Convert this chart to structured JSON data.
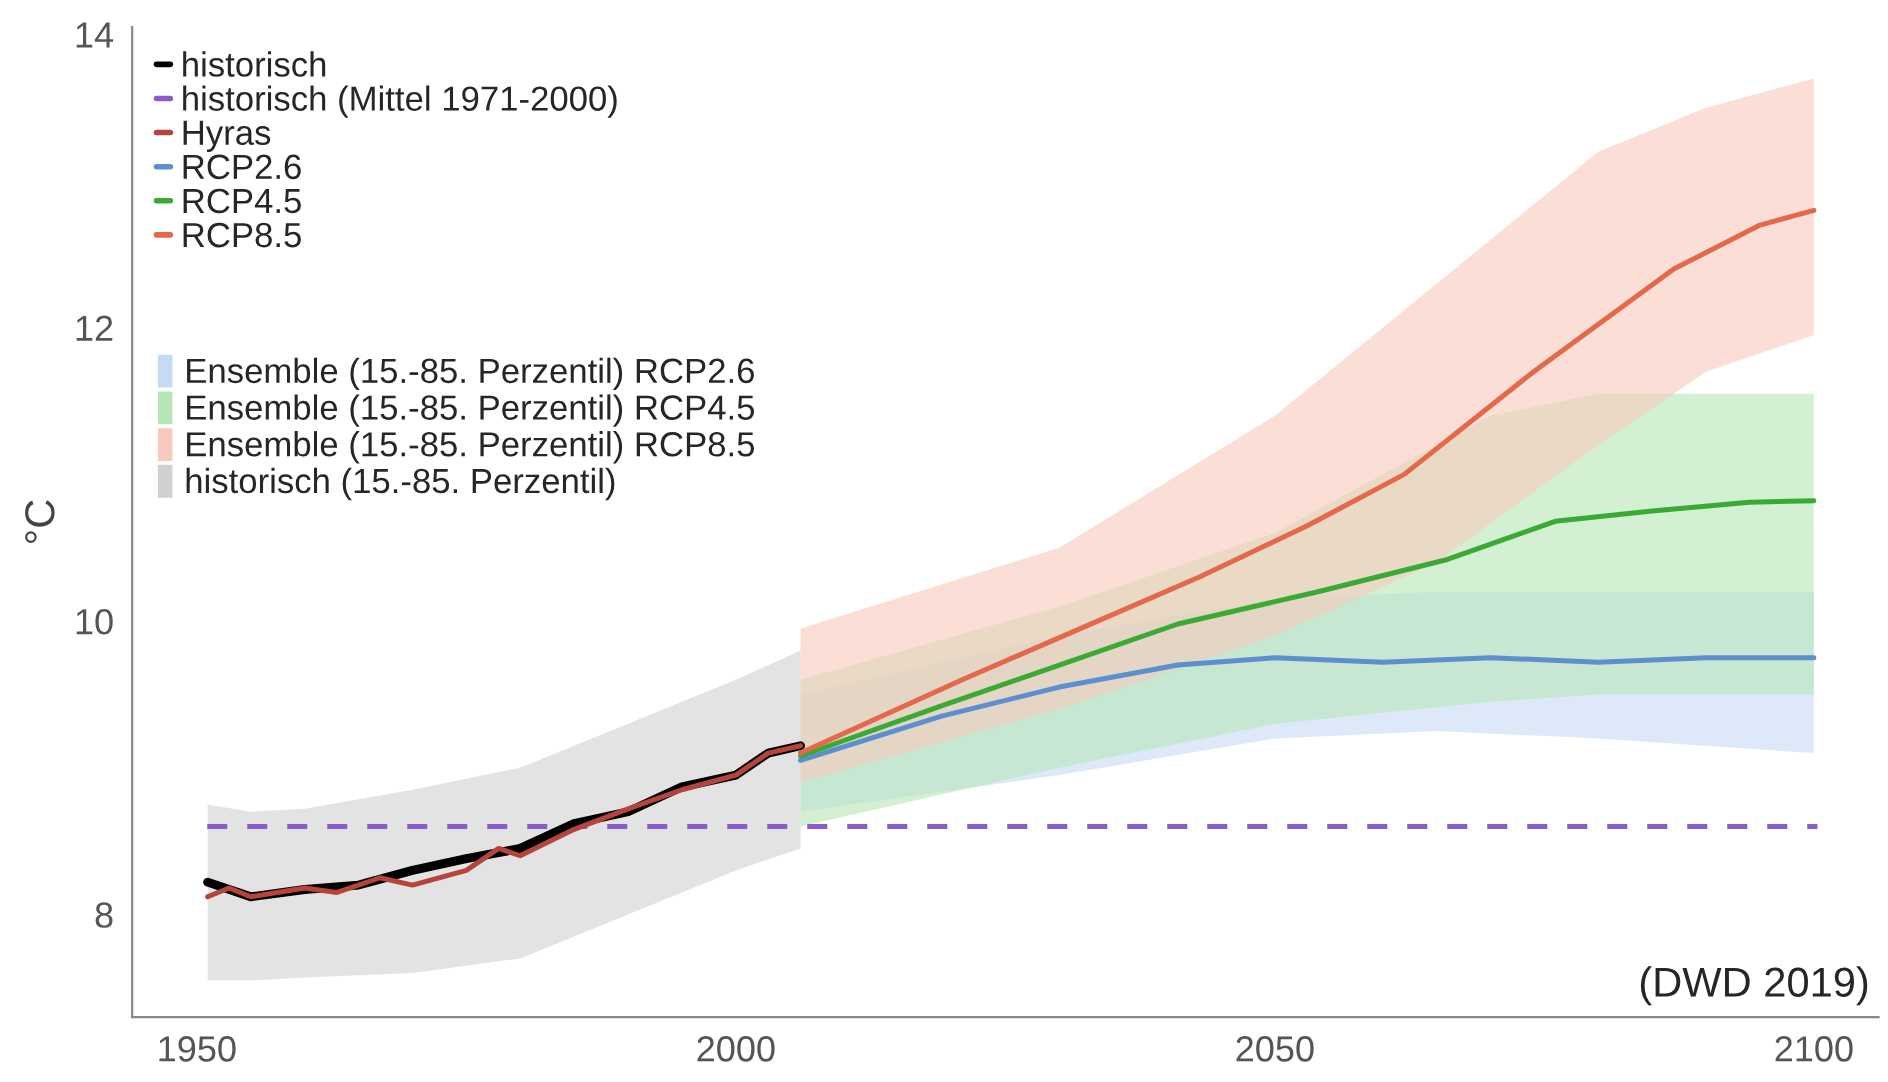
{
  "chart_data": {
    "type": "line",
    "ylabel": "°C",
    "xlim": [
      1944,
      2106
    ],
    "xticks": [
      1950,
      2000,
      2050,
      2100
    ],
    "ylim": [
      7.3,
      14.05
    ],
    "yticks": [
      8,
      10,
      12,
      14
    ],
    "grid": false,
    "legend": "top left",
    "marker": "none",
    "line_style": "solid",
    "series": [
      {
        "name": "historisch",
        "color": "#000000",
        "x": [
          1951,
          1955,
          1960,
          1965,
          1970,
          1975,
          1980,
          1985,
          1990,
          1995,
          2000,
          2003,
          2006
        ],
        "values": [
          8.22,
          8.12,
          8.17,
          8.2,
          8.3,
          8.38,
          8.45,
          8.62,
          8.7,
          8.87,
          8.95,
          9.1,
          9.15
        ]
      },
      {
        "name": "Hyras",
        "color": "#b5443b",
        "x": [
          1951,
          1953,
          1955,
          1960,
          1963,
          1967,
          1970,
          1975,
          1978,
          1980,
          1985,
          1990,
          1995,
          2000,
          2003,
          2006
        ],
        "values": [
          8.12,
          8.18,
          8.12,
          8.18,
          8.15,
          8.25,
          8.2,
          8.3,
          8.45,
          8.4,
          8.58,
          8.72,
          8.85,
          8.95,
          9.1,
          9.15
        ]
      },
      {
        "name": "RCP2.6",
        "color": "#5b8fd0",
        "x": [
          2006,
          2019,
          2030,
          2041,
          2050,
          2060,
          2070,
          2080,
          2090,
          2100
        ],
        "values": [
          9.05,
          9.35,
          9.55,
          9.7,
          9.75,
          9.72,
          9.75,
          9.72,
          9.75,
          9.75
        ]
      },
      {
        "name": "RCP4.5",
        "color": "#3aaa35",
        "x": [
          2006,
          2019,
          2030,
          2041,
          2054,
          2066,
          2076,
          2085,
          2094,
          2100
        ],
        "values": [
          9.08,
          9.42,
          9.7,
          9.98,
          10.2,
          10.42,
          10.68,
          10.75,
          10.81,
          10.82
        ]
      },
      {
        "name": "RCP8.5",
        "color": "#e4684a",
        "x": [
          2006,
          2021,
          2032,
          2043,
          2053,
          2062,
          2074,
          2087,
          2095,
          2100
        ],
        "values": [
          9.1,
          9.6,
          9.95,
          10.3,
          10.65,
          11.0,
          11.7,
          12.4,
          12.7,
          12.8
        ]
      },
      {
        "type": "area",
        "name": "Ensemble (15.-85. Perzentil) RCP2.6",
        "color": "#c6d9f5",
        "x": [
          2006,
          2030,
          2050,
          2065,
          2080,
          2100
        ],
        "values": [
          null,
          null,
          null,
          null,
          null,
          null
        ],
        "lower": [
          8.7,
          8.95,
          9.2,
          9.25,
          9.2,
          9.1
        ],
        "upper": [
          9.5,
          9.9,
          10.15,
          10.2,
          10.2,
          10.2
        ]
      },
      {
        "type": "area",
        "name": "Ensemble (15.-85. Perzentil) RCP4.5",
        "color": "#b7e6b5",
        "x": [
          2006,
          2030,
          2050,
          2070,
          2080,
          2100
        ],
        "values": [
          null,
          null,
          null,
          null,
          null,
          null
        ],
        "lower": [
          8.6,
          9.0,
          9.3,
          9.45,
          9.5,
          9.5
        ],
        "upper": [
          9.6,
          10.1,
          10.6,
          11.4,
          11.55,
          11.55
        ]
      },
      {
        "type": "area",
        "name": "Ensemble (15.-85. Perzentil) RCP8.5",
        "color": "#f8c9bd",
        "x": [
          2006,
          2030,
          2050,
          2065,
          2080,
          2090,
          2100
        ],
        "values": [
          null,
          null,
          null,
          null,
          null,
          null,
          null
        ],
        "lower": [
          8.9,
          9.4,
          9.9,
          10.4,
          11.2,
          11.7,
          11.95
        ],
        "upper": [
          9.95,
          10.5,
          11.4,
          12.3,
          13.2,
          13.5,
          13.7
        ]
      },
      {
        "type": "area",
        "name": "historisch (15.-85. Perzentil)",
        "color": "#d0d0d0",
        "x": [
          1951,
          1955,
          1960,
          1970,
          1980,
          1990,
          2000,
          2006
        ],
        "values": [
          null,
          null,
          null,
          null,
          null,
          null,
          null,
          null
        ],
        "lower": [
          7.55,
          7.55,
          7.57,
          7.6,
          7.7,
          8.0,
          8.3,
          8.45
        ],
        "upper": [
          8.75,
          8.7,
          8.72,
          8.85,
          9.0,
          9.3,
          9.6,
          9.8
        ]
      }
    ],
    "ref_lines": [
      {
        "axis": "y",
        "value": 8.6,
        "label": "historisch (Mittel 1971-2000)",
        "color": "#8a5cc9",
        "line_style": "dashed"
      }
    ],
    "annotations": [
      "(DWD 2019)"
    ]
  }
}
